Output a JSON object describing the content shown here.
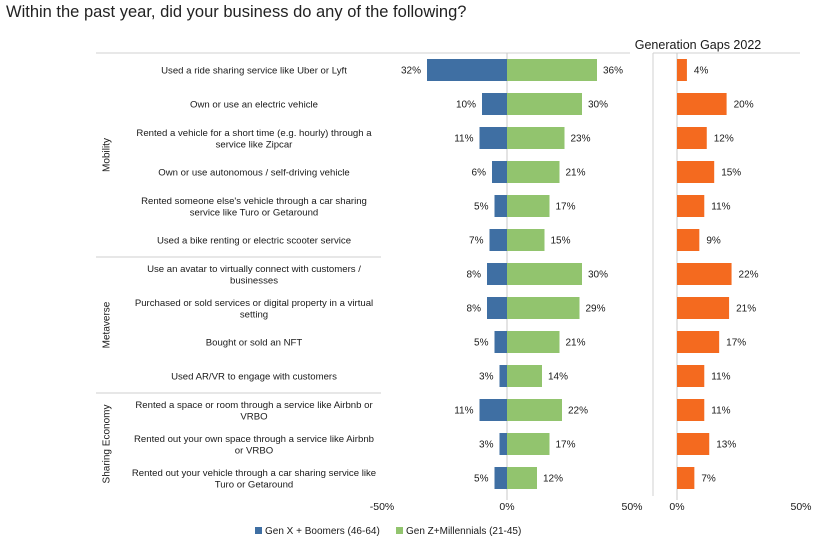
{
  "title": "Within the past year, did your business do any of the following?",
  "chart_data": [
    {
      "type": "bar",
      "orientation": "horizontal-diverging",
      "title": "",
      "xlim": [
        -50,
        50
      ],
      "x_ticks": [
        "-50%",
        "0%",
        "50%"
      ],
      "groups": [
        {
          "name": "Mobility",
          "count": 6
        },
        {
          "name": "Metaverse",
          "count": 4
        },
        {
          "name": "Sharing Economy",
          "count": 3
        }
      ],
      "categories": [
        [
          "Used a ride sharing service like Uber or Lyft"
        ],
        [
          "Own or use an electric vehicle"
        ],
        [
          "Rented a vehicle for a short time (e.g. hourly) through a",
          "service like Zipcar"
        ],
        [
          "Own or use autonomous / self-driving vehicle"
        ],
        [
          "Rented someone else's vehicle through a car sharing",
          "service like Turo or Getaround"
        ],
        [
          "Used a bike renting or electric scooter service"
        ],
        [
          "Use an avatar to virtually connect with customers /",
          "businesses"
        ],
        [
          "Purchased or sold services or digital property in a virtual",
          "setting"
        ],
        [
          "Bought or sold an NFT"
        ],
        [
          "Used AR/VR to engage with customers"
        ],
        [
          "Rented a space or room through a service like Airbnb or",
          "VRBO"
        ],
        [
          "Rented out your own space through a service like Airbnb",
          "or VRBO"
        ],
        [
          "Rented out your vehicle through a car sharing service like",
          "Turo or Getaround"
        ]
      ],
      "series": [
        {
          "name": "Gen X + Boomers (46-64)",
          "color": "#3f6fa3",
          "values": [
            32,
            10,
            11,
            6,
            5,
            7,
            8,
            8,
            5,
            3,
            11,
            3,
            5
          ],
          "labels": [
            "32%",
            "10%",
            "11%",
            "6%",
            "5%",
            "7%",
            "8%",
            "8%",
            "5%",
            "3%",
            "11%",
            "3%",
            "5%"
          ]
        },
        {
          "name": "Gen Z+Millennials (21-45)",
          "color": "#92c46e",
          "values": [
            36,
            30,
            23,
            21,
            17,
            15,
            30,
            29,
            21,
            14,
            22,
            17,
            12
          ],
          "labels": [
            "36%",
            "30%",
            "23%",
            "21%",
            "17%",
            "15%",
            "30%",
            "29%",
            "21%",
            "14%",
            "22%",
            "17%",
            "12%"
          ]
        }
      ],
      "legend_position": "bottom"
    },
    {
      "type": "bar",
      "orientation": "horizontal",
      "title": "Generation Gaps 2022",
      "xlim": [
        0,
        50
      ],
      "x_ticks": [
        "0%",
        "50%"
      ],
      "series": [
        {
          "name": "",
          "color": "#f46a1f",
          "values": [
            4,
            20,
            12,
            15,
            11,
            9,
            22,
            21,
            17,
            11,
            11,
            13,
            7
          ],
          "labels": [
            "4%",
            "20%",
            "12%",
            "15%",
            "11%",
            "9%",
            "22%",
            "21%",
            "17%",
            "11%",
            "11%",
            "13%",
            "7%"
          ]
        }
      ]
    }
  ]
}
